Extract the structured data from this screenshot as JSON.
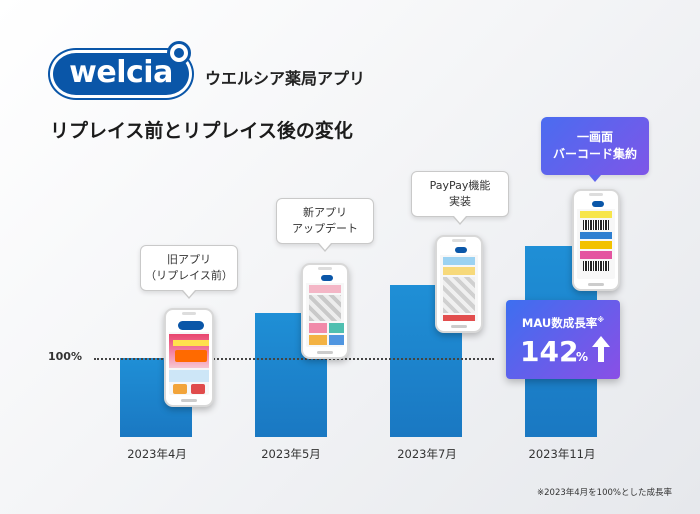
{
  "header": {
    "logo_text": "welcia",
    "app_name": "ウエルシア薬局アプリ",
    "title": "リプレイス前とリプレイス後の変化"
  },
  "chart_data": {
    "type": "bar",
    "categories": [
      "2023年4月",
      "2023年5月",
      "2023年7月",
      "2023年11月"
    ],
    "values": [
      100,
      157,
      192,
      242
    ],
    "reference_line": {
      "label": "100%",
      "value": 100
    },
    "ylim": [
      0,
      250
    ],
    "annotations": [
      {
        "category": "2023年4月",
        "lines": [
          "旧アプリ",
          "（リプレイス前）"
        ]
      },
      {
        "category": "2023年5月",
        "lines": [
          "新アプリ",
          "アップデート"
        ]
      },
      {
        "category": "2023年7月",
        "lines": [
          "PayPay機能",
          "実装"
        ]
      },
      {
        "category": "2023年11月",
        "lines": [
          "一画面",
          "バーコード集約"
        ]
      }
    ],
    "colors": {
      "bar": "#1f8fd6",
      "highlight_from": "#4a6cf0",
      "highlight_to": "#7e56e8"
    }
  },
  "mau": {
    "label": "MAU数成長率",
    "mark": "※",
    "value": "142",
    "unit": "%"
  },
  "footnote": "※2023年4月を100%とした成長率"
}
